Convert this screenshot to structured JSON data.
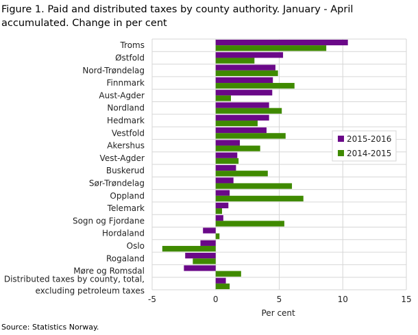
{
  "chart_data": {
    "type": "bar",
    "orientation": "horizontal",
    "title": "Figure 1. Paid and distributed taxes by county authority. January - April accumulated. Change in per cent",
    "xlabel": "Per cent",
    "xlim": [
      -5,
      15
    ],
    "xticks": [
      -5,
      0,
      5,
      10,
      15
    ],
    "grid": true,
    "legend_position": "right",
    "categories": [
      "Troms",
      "Østfold",
      "Nord-Trøndelag",
      "Finnmark",
      "Aust-Agder",
      "Nordland",
      "Hedmark",
      "Vestfold",
      "Akershus",
      "Vest-Agder",
      "Buskerud",
      "Sør-Trøndelag",
      "Oppland",
      "Telemark",
      "Sogn og Fjordane",
      "Hordaland",
      "Oslo",
      "Rogaland",
      "Møre og Romsdal",
      "Distributed taxes by county, total, excluding petroleum taxes"
    ],
    "category_lines": [
      [
        "Troms"
      ],
      [
        "Østfold"
      ],
      [
        "Nord-Trøndelag"
      ],
      [
        "Finnmark"
      ],
      [
        "Aust-Agder"
      ],
      [
        "Nordland"
      ],
      [
        "Hedmark"
      ],
      [
        "Vestfold"
      ],
      [
        "Akershus"
      ],
      [
        "Vest-Agder"
      ],
      [
        "Buskerud"
      ],
      [
        "Sør-Trøndelag"
      ],
      [
        "Oppland"
      ],
      [
        "Telemark"
      ],
      [
        "Sogn og Fjordane"
      ],
      [
        "Hordaland"
      ],
      [
        "Oslo"
      ],
      [
        "Rogaland"
      ],
      [
        "Møre og Romsdal"
      ],
      [
        "Distributed taxes by county, total,",
        "excluding petroleum taxes"
      ]
    ],
    "series": [
      {
        "name": "2015-2016",
        "color": "#6a0888",
        "values": [
          10.4,
          5.3,
          4.7,
          4.5,
          4.45,
          4.2,
          4.2,
          4.0,
          1.9,
          1.7,
          1.6,
          1.4,
          1.1,
          1.0,
          0.6,
          -1.0,
          -1.2,
          -2.4,
          -2.5,
          0.8
        ]
      },
      {
        "name": "2014-2015",
        "color": "#3f8a00",
        "values": [
          8.7,
          3.05,
          4.9,
          6.2,
          1.2,
          5.2,
          3.3,
          5.5,
          3.5,
          1.8,
          4.1,
          6.0,
          6.9,
          0.5,
          5.4,
          0.3,
          -4.2,
          -1.8,
          2.0,
          1.1
        ]
      }
    ],
    "source": "Source: Statistics Norway."
  }
}
